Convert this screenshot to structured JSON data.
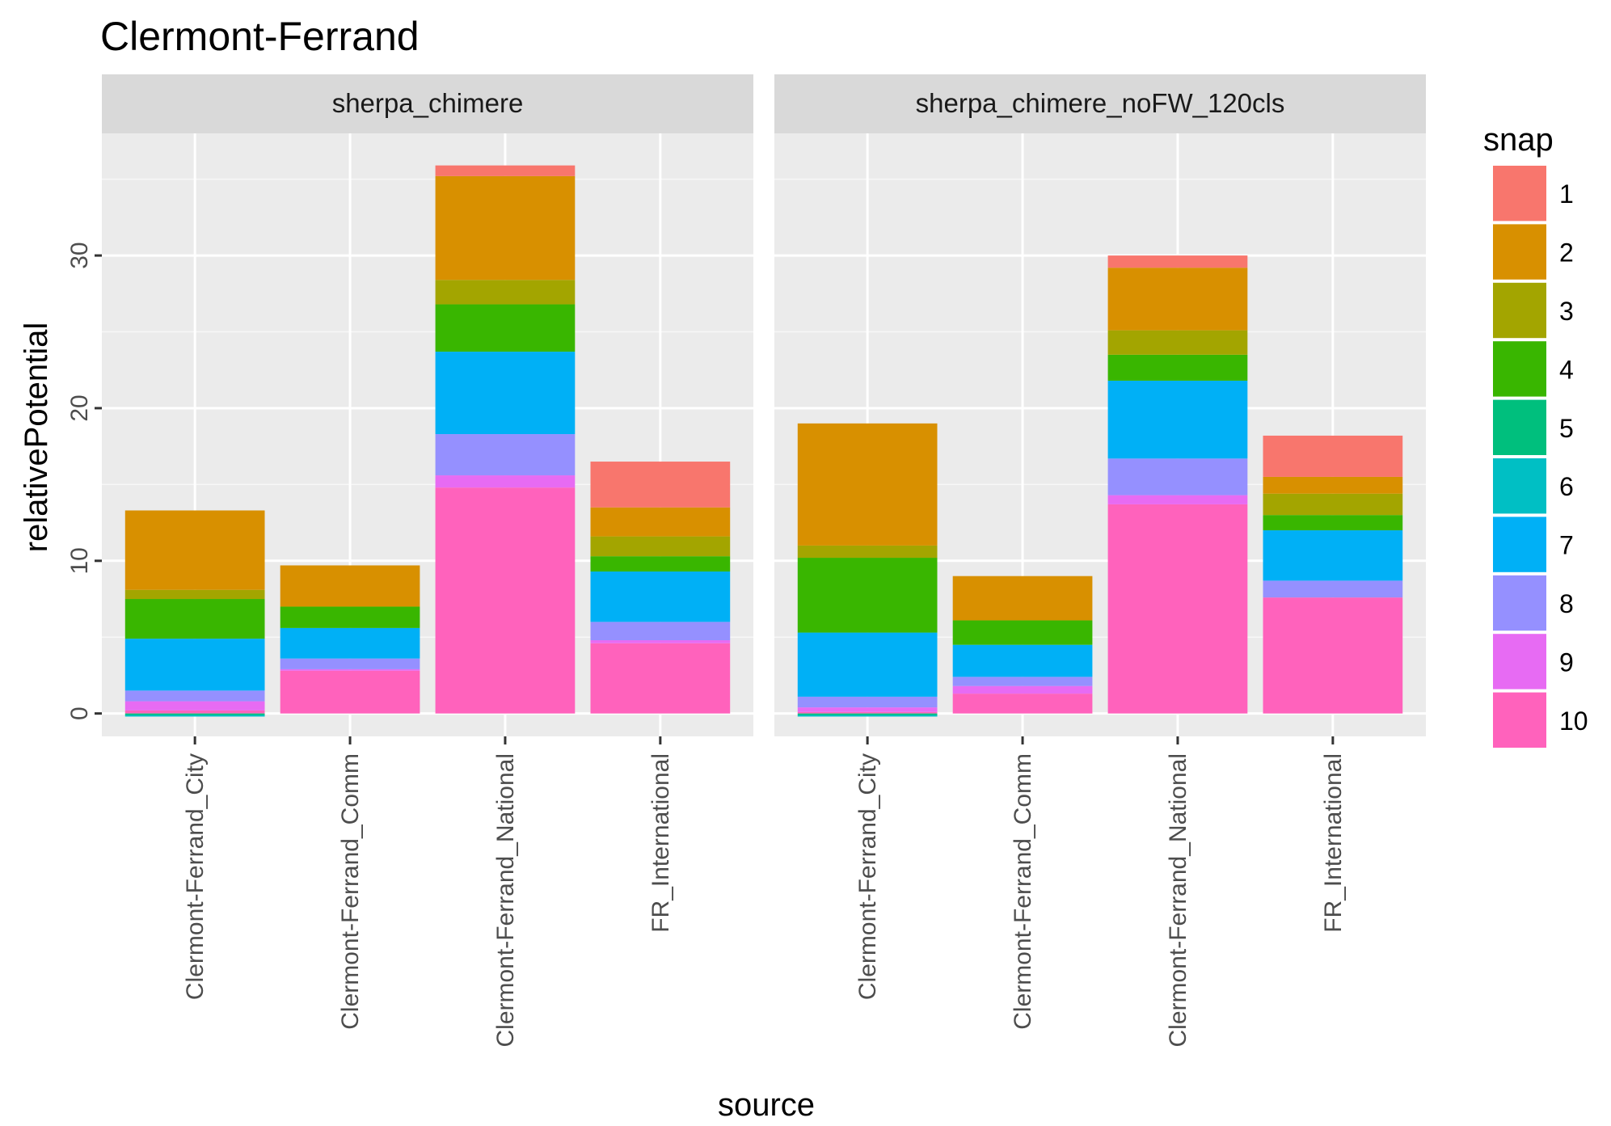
{
  "chart_data": {
    "type": "bar",
    "stacked": true,
    "title": "Clermont-Ferrand",
    "xlabel": "source",
    "ylabel": "relativePotential",
    "ylim": [
      -1.5,
      38
    ],
    "yticks": [
      "0",
      "10",
      "20",
      "30"
    ],
    "grid": true,
    "legend": {
      "title": "snap",
      "position": "right"
    },
    "categories": [
      "Clermont-Ferrand_City",
      "Clermont-Ferrand_Comm",
      "Clermont-Ferrand_National",
      "FR_International"
    ],
    "snaps": [
      "1",
      "2",
      "3",
      "4",
      "5",
      "6",
      "7",
      "8",
      "9",
      "10"
    ],
    "colors": {
      "1": "#F8766D",
      "2": "#D89000",
      "3": "#A3A500",
      "4": "#39B600",
      "5": "#00BF7D",
      "6": "#00BFC4",
      "7": "#00B0F6",
      "8": "#9590FF",
      "9": "#E76BF3",
      "10": "#FF62BC"
    },
    "panels": [
      {
        "name": "sherpa_chimere",
        "series": [
          {
            "name": "1",
            "values": [
              0.0,
              0.0,
              0.7,
              3.0
            ]
          },
          {
            "name": "2",
            "values": [
              5.2,
              2.7,
              6.8,
              1.9
            ]
          },
          {
            "name": "3",
            "values": [
              0.6,
              0.0,
              1.6,
              1.3
            ]
          },
          {
            "name": "4",
            "values": [
              2.6,
              1.4,
              3.1,
              1.0
            ]
          },
          {
            "name": "5",
            "values": [
              0.0,
              0.0,
              0.0,
              0.0
            ]
          },
          {
            "name": "6",
            "values": [
              0.0,
              0.0,
              0.0,
              0.0
            ]
          },
          {
            "name": "7",
            "values": [
              3.4,
              2.0,
              5.4,
              3.3
            ]
          },
          {
            "name": "8",
            "values": [
              0.7,
              0.7,
              2.7,
              1.2
            ]
          },
          {
            "name": "9",
            "values": [
              0.6,
              0.1,
              0.8,
              0.2
            ]
          },
          {
            "name": "10",
            "values": [
              0.2,
              2.8,
              14.8,
              4.6
            ]
          }
        ],
        "negative": [
          {
            "name": "5",
            "values": [
              -0.1,
              0.0,
              0.0,
              0.0
            ]
          },
          {
            "name": "6",
            "values": [
              -0.1,
              0.0,
              0.0,
              0.0
            ]
          }
        ]
      },
      {
        "name": "sherpa_chimere_noFW_120cls",
        "series": [
          {
            "name": "1",
            "values": [
              0.0,
              0.0,
              0.8,
              2.7
            ]
          },
          {
            "name": "2",
            "values": [
              8.0,
              2.9,
              4.1,
              1.1
            ]
          },
          {
            "name": "3",
            "values": [
              0.8,
              0.0,
              1.6,
              1.4
            ]
          },
          {
            "name": "4",
            "values": [
              4.9,
              1.6,
              1.7,
              1.0
            ]
          },
          {
            "name": "5",
            "values": [
              0.0,
              0.0,
              0.0,
              0.0
            ]
          },
          {
            "name": "6",
            "values": [
              0.0,
              0.0,
              0.0,
              0.0
            ]
          },
          {
            "name": "7",
            "values": [
              4.2,
              2.1,
              5.1,
              3.3
            ]
          },
          {
            "name": "8",
            "values": [
              0.7,
              0.6,
              2.4,
              1.1
            ]
          },
          {
            "name": "9",
            "values": [
              0.3,
              0.5,
              0.6,
              0.0
            ]
          },
          {
            "name": "10",
            "values": [
              0.1,
              1.3,
              13.7,
              7.6
            ]
          }
        ],
        "negative": [
          {
            "name": "5",
            "values": [
              -0.1,
              0.0,
              0.0,
              0.0
            ]
          },
          {
            "name": "6",
            "values": [
              -0.1,
              0.0,
              0.0,
              0.0
            ]
          }
        ]
      }
    ]
  }
}
